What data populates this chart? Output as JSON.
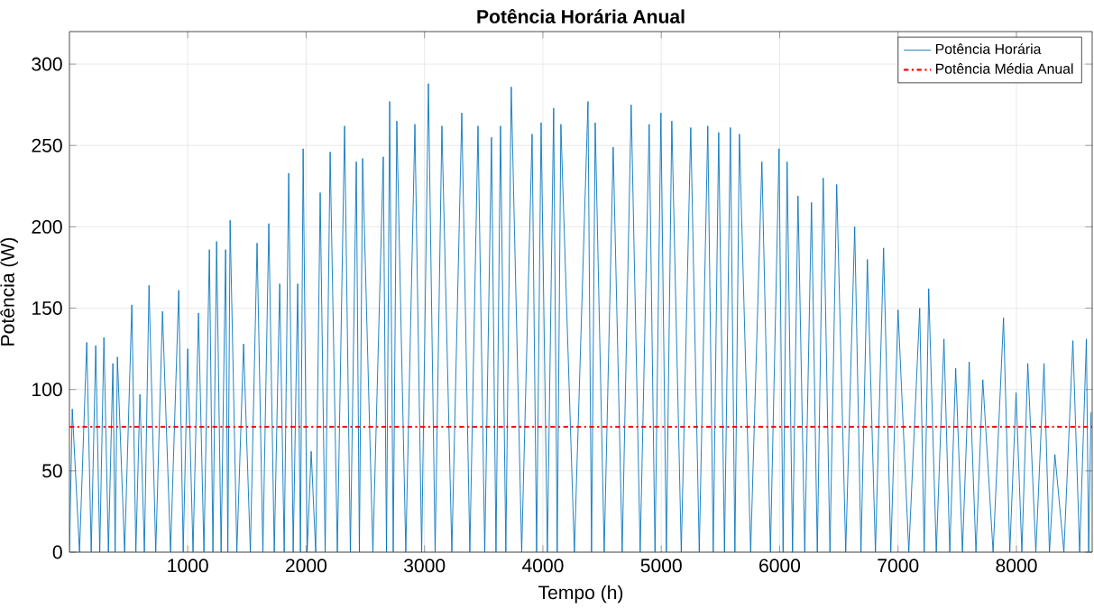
{
  "chart_data": {
    "type": "line",
    "title": "Potência Horária Anual",
    "xlabel": "Tempo (h)",
    "ylabel": "Potência (W)",
    "xlim": [
      1,
      8640
    ],
    "ylim": [
      0,
      320
    ],
    "xticks": [
      1000,
      2000,
      3000,
      4000,
      5000,
      6000,
      7000,
      8000
    ],
    "yticks": [
      0,
      50,
      100,
      150,
      200,
      250,
      300
    ],
    "grid": true,
    "legend": "top right",
    "series": [
      {
        "name": "Potência Horária",
        "color": "#0072bd",
        "x": [
          1,
          25,
          86,
          147,
          185,
          223,
          257,
          292,
          330,
          368,
          387,
          406,
          467,
          528,
          562,
          596,
          634,
          673,
          730,
          787,
          855,
          924,
          962,
          1000,
          1045,
          1091,
          1137,
          1183,
          1213,
          1244,
          1282,
          1320,
          1339,
          1358,
          1415,
          1472,
          1529,
          1586,
          1635,
          1685,
          1731,
          1777,
          1815,
          1853,
          1891,
          1929,
          1952,
          1975,
          2009,
          2043,
          2081,
          2119,
          2161,
          2203,
          2264,
          2325,
          2374,
          2424,
          2450,
          2477,
          2564,
          2652,
          2679,
          2706,
          2736,
          2766,
          2842,
          2919,
          2976,
          3033,
          3090,
          3147,
          3231,
          3315,
          3383,
          3452,
          3509,
          3566,
          3604,
          3642,
          3687,
          3733,
          3821,
          3909,
          3947,
          3985,
          4038,
          4091,
          4121,
          4152,
          4266,
          4381,
          4411,
          4442,
          4518,
          4594,
          4670,
          4746,
          4822,
          4898,
          4947,
          4997,
          5043,
          5089,
          5169,
          5249,
          5321,
          5393,
          5439,
          5485,
          5534,
          5584,
          5622,
          5660,
          5755,
          5850,
          5922,
          5995,
          6029,
          6063,
          6109,
          6155,
          6212,
          6269,
          6318,
          6368,
          6425,
          6482,
          6558,
          6634,
          6687,
          6741,
          6809,
          6878,
          6939,
          7000,
          7091,
          7183,
          7221,
          7259,
          7323,
          7388,
          7437,
          7487,
          7544,
          7601,
          7658,
          7716,
          7803,
          7891,
          7944,
          7997,
          8046,
          8096,
          8164,
          8233,
          8279,
          8325,
          8401,
          8477,
          8534,
          8591,
          8610,
          8630
        ],
        "values": [
          0,
          88,
          0,
          129,
          0,
          127,
          0,
          132,
          0,
          116,
          0,
          120,
          0,
          152,
          0,
          97,
          0,
          164,
          0,
          148,
          0,
          161,
          0,
          125,
          0,
          147,
          0,
          186,
          0,
          191,
          0,
          186,
          0,
          204,
          0,
          128,
          0,
          190,
          0,
          202,
          0,
          165,
          0,
          233,
          0,
          165,
          0,
          248,
          0,
          62,
          0,
          221,
          0,
          246,
          0,
          262,
          0,
          240,
          0,
          242,
          0,
          243,
          0,
          277,
          0,
          265,
          0,
          263,
          0,
          288,
          0,
          262,
          0,
          270,
          0,
          262,
          0,
          255,
          0,
          262,
          0,
          286,
          0,
          257,
          0,
          264,
          0,
          273,
          0,
          263,
          0,
          277,
          0,
          264,
          0,
          249,
          0,
          275,
          0,
          263,
          0,
          270,
          0,
          265,
          0,
          261,
          0,
          262,
          0,
          258,
          0,
          261,
          0,
          257,
          0,
          240,
          0,
          248,
          0,
          240,
          0,
          219,
          0,
          215,
          0,
          230,
          0,
          226,
          0,
          200,
          0,
          180,
          0,
          187,
          0,
          149,
          0,
          150,
          0,
          162,
          0,
          131,
          0,
          113,
          0,
          117,
          0,
          106,
          0,
          144,
          0,
          98,
          0,
          116,
          0,
          116,
          0,
          60,
          0,
          130,
          0,
          131,
          0,
          86
        ]
      }
    ],
    "ref_lines": [
      {
        "axis": "y",
        "value": 77,
        "label": "Potência Média Anual",
        "color": "#ff0000",
        "line_style": "dashdot"
      }
    ]
  }
}
